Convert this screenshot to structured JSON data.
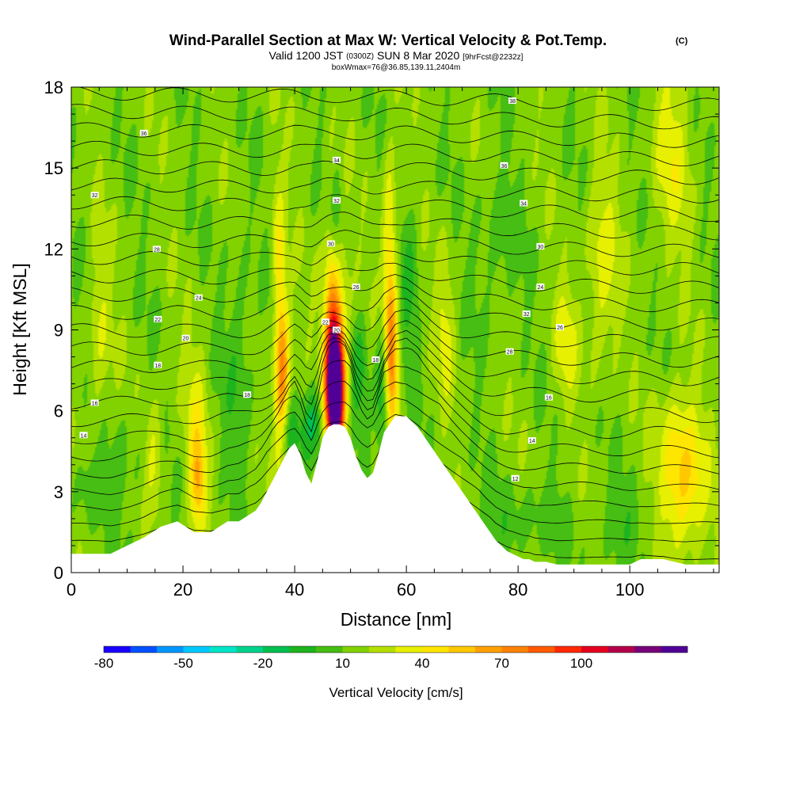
{
  "chart_data": {
    "type": "heatmap",
    "title": {
      "main": "Wind-Parallel Section at Max W: Vertical Velocity & Pot.Temp.",
      "copyright": "(C)",
      "valid_prefix": "Valid 1200 JST",
      "valid_z": "(0300Z)",
      "valid_date": "SUN 8 Mar 2020",
      "forecast": "[9hrFcst@2232z]",
      "box_info": "boxWmax=76@36.85,139.11,2404m"
    },
    "xlabel": "Distance [nm]",
    "ylabel": "Height [Kft MSL]",
    "xlim": [
      0,
      116
    ],
    "ylim": [
      0,
      18
    ],
    "x_ticks": [
      "0",
      "20",
      "40",
      "60",
      "80",
      "100"
    ],
    "y_ticks": [
      "0",
      "3",
      "6",
      "9",
      "12",
      "15",
      "18"
    ],
    "colorbar": {
      "label": "Vertical Velocity [cm/s]",
      "tick_labels": [
        "-80",
        "-50",
        "-20",
        "10",
        "40",
        "70",
        "100"
      ],
      "levels": [
        -80,
        -70,
        -60,
        -50,
        -40,
        -30,
        -20,
        -10,
        0,
        10,
        20,
        30,
        40,
        50,
        60,
        70,
        80,
        90,
        100,
        110,
        120
      ],
      "colors": [
        "#1a00ff",
        "#0050ff",
        "#0096ff",
        "#00c8ff",
        "#00e6c8",
        "#00d28c",
        "#00c050",
        "#1eb41e",
        "#46be14",
        "#82d200",
        "#b4e000",
        "#e6f000",
        "#ffe600",
        "#ffc800",
        "#ffa000",
        "#ff8200",
        "#ff5a00",
        "#ff2800",
        "#e6001e",
        "#b4004b",
        "#780078",
        "#500096"
      ]
    },
    "terrain": {
      "x": [
        0,
        7,
        10,
        13,
        16,
        19,
        22,
        25,
        28,
        30,
        33,
        34,
        35,
        36,
        37,
        38,
        39,
        40,
        41,
        42,
        43,
        44,
        45,
        46,
        47,
        48,
        49,
        50,
        51,
        52,
        53,
        54,
        55,
        56,
        57,
        58,
        59,
        60,
        61,
        62,
        63,
        64,
        65,
        66,
        67,
        68,
        69,
        70,
        71,
        72,
        73,
        74,
        75,
        76,
        77,
        78,
        79,
        80,
        81,
        82,
        83,
        84,
        85,
        87,
        90,
        95,
        100,
        102,
        106,
        110,
        116
      ],
      "y": [
        0.7,
        0.7,
        1.0,
        1.3,
        1.7,
        1.9,
        1.5,
        1.5,
        1.9,
        1.9,
        2.3,
        2.6,
        3.0,
        3.4,
        3.8,
        4.2,
        4.6,
        4.8,
        4.4,
        3.7,
        3.3,
        4.1,
        5.0,
        5.4,
        5.5,
        5.5,
        5.4,
        5.0,
        4.3,
        3.8,
        3.5,
        3.7,
        4.4,
        5.2,
        5.5,
        5.8,
        5.8,
        5.8,
        5.6,
        5.4,
        5.1,
        4.8,
        4.5,
        4.2,
        3.9,
        3.6,
        3.3,
        3.0,
        2.7,
        2.4,
        2.1,
        1.8,
        1.5,
        1.2,
        1.0,
        0.8,
        0.7,
        0.6,
        0.5,
        0.5,
        0.4,
        0.4,
        0.4,
        0.3,
        0.3,
        0.3,
        0.3,
        0.5,
        0.5,
        0.3,
        0.3
      ]
    },
    "updrafts": [
      {
        "x": 47.2,
        "y": 6.8,
        "sx": 1.1,
        "sy": 1.7,
        "w": 160
      },
      {
        "x": 47.3,
        "y": 8.8,
        "sx": 1.6,
        "sy": 2.6,
        "w": 35
      },
      {
        "x": 46.5,
        "y": 11.2,
        "sx": 0.8,
        "sy": 2.8,
        "w": 18
      },
      {
        "x": 37.8,
        "y": 7.0,
        "sx": 1.0,
        "sy": 2.2,
        "w": 55
      },
      {
        "x": 37.0,
        "y": 10.6,
        "sx": 0.9,
        "sy": 2.6,
        "w": 35
      },
      {
        "x": 57.4,
        "y": 7.4,
        "sx": 0.9,
        "sy": 2.0,
        "w": 50
      },
      {
        "x": 57.0,
        "y": 11.4,
        "sx": 0.9,
        "sy": 2.8,
        "w": 35
      },
      {
        "x": 22.7,
        "y": 3.3,
        "sx": 1.0,
        "sy": 1.2,
        "w": 40
      },
      {
        "x": 22.4,
        "y": 5.8,
        "sx": 1.5,
        "sy": 2.0,
        "w": 18
      },
      {
        "x": 109.7,
        "y": 3.0,
        "sx": 3.0,
        "sy": 1.6,
        "w": 35
      },
      {
        "x": 108.5,
        "y": 5.2,
        "sx": 2.5,
        "sy": 1.6,
        "w": 18
      },
      {
        "x": 95.0,
        "y": 11.2,
        "sx": 2.0,
        "sy": 2.5,
        "w": 22
      },
      {
        "x": 107.5,
        "y": 15.5,
        "sx": 2.5,
        "sy": 2.5,
        "w": 20
      },
      {
        "x": 88.5,
        "y": 8.5,
        "sx": 1.5,
        "sy": 1.5,
        "w": 20
      },
      {
        "x": 67.0,
        "y": 9.2,
        "sx": 1.2,
        "sy": 2.0,
        "w": 18
      },
      {
        "x": 14.8,
        "y": 4.3,
        "sx": 1.2,
        "sy": 1.4,
        "w": 22
      },
      {
        "x": 5.0,
        "y": 8.8,
        "sx": 1.5,
        "sy": 2.5,
        "w": 16
      }
    ],
    "downdrafts": [
      {
        "x": 43.5,
        "y": 5.6,
        "sx": 1.4,
        "sy": 1.0,
        "w": -30
      },
      {
        "x": 38.8,
        "y": 5.2,
        "sx": 1.3,
        "sy": 0.9,
        "w": -25
      },
      {
        "x": 55.8,
        "y": 6.5,
        "sx": 0.9,
        "sy": 1.8,
        "w": -30
      },
      {
        "x": 51.5,
        "y": 7.5,
        "sx": 1.2,
        "sy": 1.6,
        "w": -18
      },
      {
        "x": 36.5,
        "y": 9.6,
        "sx": 0.8,
        "sy": 1.6,
        "w": -20
      },
      {
        "x": 47.2,
        "y": 13.0,
        "sx": 0.9,
        "sy": 1.5,
        "w": -18
      },
      {
        "x": 60.5,
        "y": 10.8,
        "sx": 1.2,
        "sy": 2.5,
        "w": -14
      },
      {
        "x": 30.0,
        "y": 8.0,
        "sx": 2.0,
        "sy": 3.0,
        "w": -12
      },
      {
        "x": 76.0,
        "y": 12.0,
        "sx": 3.0,
        "sy": 2.0,
        "w": -10
      },
      {
        "x": 10.0,
        "y": 3.8,
        "sx": 3.0,
        "sy": 1.2,
        "w": -10
      },
      {
        "x": 80.0,
        "y": 1.8,
        "sx": 6.0,
        "sy": 1.0,
        "w": -10
      },
      {
        "x": 100.0,
        "y": 1.8,
        "sx": 4.0,
        "sy": 1.0,
        "w": -10
      },
      {
        "x": 3.0,
        "y": 3.2,
        "sx": 2.0,
        "sy": 1.0,
        "w": -12
      }
    ],
    "isentrope_labels": [
      {
        "x": 79.0,
        "y": 17.5,
        "text": "38"
      },
      {
        "x": 13.0,
        "y": 16.3,
        "text": "36"
      },
      {
        "x": 47.5,
        "y": 15.3,
        "text": "34"
      },
      {
        "x": 77.5,
        "y": 15.1,
        "text": "36"
      },
      {
        "x": 4.2,
        "y": 14.0,
        "text": "32"
      },
      {
        "x": 47.5,
        "y": 13.8,
        "text": "32"
      },
      {
        "x": 81.0,
        "y": 13.7,
        "text": "34"
      },
      {
        "x": 15.3,
        "y": 12.0,
        "text": "28"
      },
      {
        "x": 46.5,
        "y": 12.2,
        "text": "30"
      },
      {
        "x": 84.0,
        "y": 12.1,
        "text": "30"
      },
      {
        "x": 22.8,
        "y": 10.2,
        "text": "24"
      },
      {
        "x": 51.0,
        "y": 10.6,
        "text": "26"
      },
      {
        "x": 84.0,
        "y": 10.6,
        "text": "24"
      },
      {
        "x": 15.5,
        "y": 9.4,
        "text": "22"
      },
      {
        "x": 45.5,
        "y": 9.3,
        "text": "22"
      },
      {
        "x": 81.5,
        "y": 9.6,
        "text": "32"
      },
      {
        "x": 87.5,
        "y": 9.1,
        "text": "26"
      },
      {
        "x": 47.5,
        "y": 9.0,
        "text": "20"
      },
      {
        "x": 20.5,
        "y": 8.7,
        "text": "20"
      },
      {
        "x": 78.5,
        "y": 8.2,
        "text": "28"
      },
      {
        "x": 15.5,
        "y": 7.7,
        "text": "18"
      },
      {
        "x": 54.5,
        "y": 7.9,
        "text": "18"
      },
      {
        "x": 31.5,
        "y": 6.6,
        "text": "18"
      },
      {
        "x": 85.5,
        "y": 6.5,
        "text": "16"
      },
      {
        "x": 4.2,
        "y": 6.3,
        "text": "16"
      },
      {
        "x": 2.2,
        "y": 5.1,
        "text": "14"
      },
      {
        "x": 82.5,
        "y": 4.9,
        "text": "14"
      },
      {
        "x": 79.5,
        "y": 3.5,
        "text": "12"
      }
    ]
  }
}
